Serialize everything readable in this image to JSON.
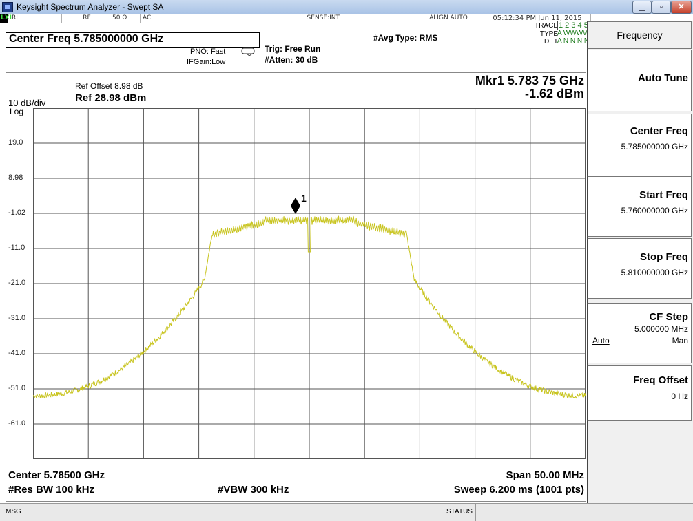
{
  "window": {
    "title": "Keysight Spectrum Analyzer - Swept SA",
    "minimize_glyph": "▁",
    "maximize_glyph": "▫",
    "close_glyph": "✕"
  },
  "status_strip": {
    "lxi": "LXI",
    "rl": "RL",
    "rf": "RF",
    "impedance": "50 Ω",
    "coupling": "AC",
    "sense": "SENSE:INT",
    "align": "ALIGN AUTO",
    "datetime": "05:12:34 PM Jun 11, 2015"
  },
  "header": {
    "center_freq": "Center Freq 5.785000000 GHz",
    "pno": "PNO: Fast",
    "ifgain": "IFGain:Low",
    "trig": "Trig: Free Run",
    "atten": "#Atten: 30 dB",
    "avg_type": "#Avg Type: RMS",
    "trace_label": "TRACE",
    "trace_values": "1 2 3 4 5 6",
    "type_label": "TYPE",
    "type_values": "A WWWWW",
    "det_label": "DET",
    "det_values": "A N N N N N"
  },
  "plot": {
    "ref_offset": "Ref Offset 8.98 dB",
    "ref_level": "Ref 28.98 dBm",
    "scale": "10 dB/div",
    "scale_type": "Log",
    "marker_freq": "Mkr1 5.783 75 GHz",
    "marker_amp": "-1.62 dBm",
    "marker_number": "1",
    "y_ticks": [
      "19.0",
      "8.98",
      "-1.02",
      "-11.0",
      "-21.0",
      "-31.0",
      "-41.0",
      "-51.0",
      "-61.0"
    ],
    "center": "Center 5.78500 GHz",
    "span": "Span 50.00 MHz",
    "rbw": "#Res BW 100 kHz",
    "vbw": "#VBW 300 kHz",
    "sweep": "Sweep  6.200 ms (1001 pts)",
    "trace_color": "#c8c41e"
  },
  "softkeys": {
    "menu_title": "Frequency",
    "auto_tune": "Auto Tune",
    "center_freq_label": "Center Freq",
    "center_freq_value": "5.785000000 GHz",
    "start_freq_label": "Start Freq",
    "start_freq_value": "5.760000000 GHz",
    "stop_freq_label": "Stop Freq",
    "stop_freq_value": "5.810000000 GHz",
    "cf_step_label": "CF Step",
    "cf_step_value": "5.000000 MHz",
    "cf_step_auto": "Auto",
    "cf_step_man": "Man",
    "freq_offset_label": "Freq Offset",
    "freq_offset_value": "0 Hz"
  },
  "message_bar": {
    "msg": "MSG",
    "status": "STATUS"
  }
}
